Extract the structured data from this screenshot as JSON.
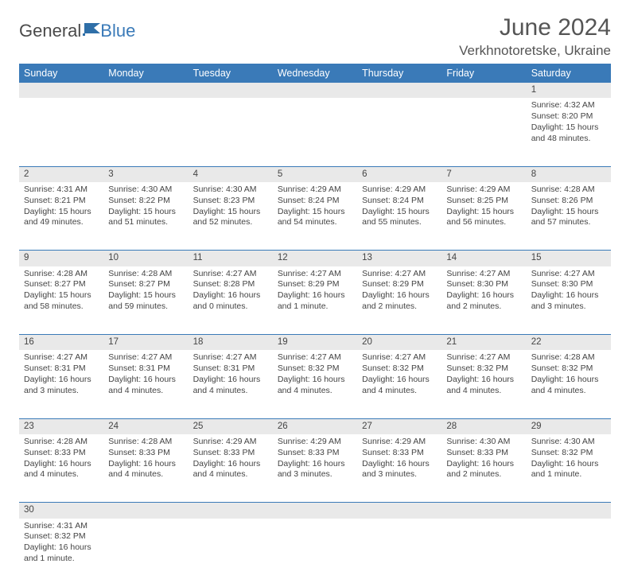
{
  "brand": {
    "general": "General",
    "blue": "Blue"
  },
  "title": "June 2024",
  "location": "Verkhnotoretske, Ukraine",
  "colors": {
    "header_bg": "#3a7ab8",
    "header_text": "#ffffff",
    "daynum_bg": "#e9e9e9",
    "border": "#3a7ab8",
    "body_text": "#444444",
    "title_text": "#555555"
  },
  "layout": {
    "columns": 7,
    "column_width_pct": 14.2857
  },
  "weekdays": [
    "Sunday",
    "Monday",
    "Tuesday",
    "Wednesday",
    "Thursday",
    "Friday",
    "Saturday"
  ],
  "weeks": [
    [
      null,
      null,
      null,
      null,
      null,
      null,
      {
        "n": "1",
        "sr": "Sunrise: 4:32 AM",
        "ss": "Sunset: 8:20 PM",
        "d1": "Daylight: 15 hours",
        "d2": "and 48 minutes."
      }
    ],
    [
      {
        "n": "2",
        "sr": "Sunrise: 4:31 AM",
        "ss": "Sunset: 8:21 PM",
        "d1": "Daylight: 15 hours",
        "d2": "and 49 minutes."
      },
      {
        "n": "3",
        "sr": "Sunrise: 4:30 AM",
        "ss": "Sunset: 8:22 PM",
        "d1": "Daylight: 15 hours",
        "d2": "and 51 minutes."
      },
      {
        "n": "4",
        "sr": "Sunrise: 4:30 AM",
        "ss": "Sunset: 8:23 PM",
        "d1": "Daylight: 15 hours",
        "d2": "and 52 minutes."
      },
      {
        "n": "5",
        "sr": "Sunrise: 4:29 AM",
        "ss": "Sunset: 8:24 PM",
        "d1": "Daylight: 15 hours",
        "d2": "and 54 minutes."
      },
      {
        "n": "6",
        "sr": "Sunrise: 4:29 AM",
        "ss": "Sunset: 8:24 PM",
        "d1": "Daylight: 15 hours",
        "d2": "and 55 minutes."
      },
      {
        "n": "7",
        "sr": "Sunrise: 4:29 AM",
        "ss": "Sunset: 8:25 PM",
        "d1": "Daylight: 15 hours",
        "d2": "and 56 minutes."
      },
      {
        "n": "8",
        "sr": "Sunrise: 4:28 AM",
        "ss": "Sunset: 8:26 PM",
        "d1": "Daylight: 15 hours",
        "d2": "and 57 minutes."
      }
    ],
    [
      {
        "n": "9",
        "sr": "Sunrise: 4:28 AM",
        "ss": "Sunset: 8:27 PM",
        "d1": "Daylight: 15 hours",
        "d2": "and 58 minutes."
      },
      {
        "n": "10",
        "sr": "Sunrise: 4:28 AM",
        "ss": "Sunset: 8:27 PM",
        "d1": "Daylight: 15 hours",
        "d2": "and 59 minutes."
      },
      {
        "n": "11",
        "sr": "Sunrise: 4:27 AM",
        "ss": "Sunset: 8:28 PM",
        "d1": "Daylight: 16 hours",
        "d2": "and 0 minutes."
      },
      {
        "n": "12",
        "sr": "Sunrise: 4:27 AM",
        "ss": "Sunset: 8:29 PM",
        "d1": "Daylight: 16 hours",
        "d2": "and 1 minute."
      },
      {
        "n": "13",
        "sr": "Sunrise: 4:27 AM",
        "ss": "Sunset: 8:29 PM",
        "d1": "Daylight: 16 hours",
        "d2": "and 2 minutes."
      },
      {
        "n": "14",
        "sr": "Sunrise: 4:27 AM",
        "ss": "Sunset: 8:30 PM",
        "d1": "Daylight: 16 hours",
        "d2": "and 2 minutes."
      },
      {
        "n": "15",
        "sr": "Sunrise: 4:27 AM",
        "ss": "Sunset: 8:30 PM",
        "d1": "Daylight: 16 hours",
        "d2": "and 3 minutes."
      }
    ],
    [
      {
        "n": "16",
        "sr": "Sunrise: 4:27 AM",
        "ss": "Sunset: 8:31 PM",
        "d1": "Daylight: 16 hours",
        "d2": "and 3 minutes."
      },
      {
        "n": "17",
        "sr": "Sunrise: 4:27 AM",
        "ss": "Sunset: 8:31 PM",
        "d1": "Daylight: 16 hours",
        "d2": "and 4 minutes."
      },
      {
        "n": "18",
        "sr": "Sunrise: 4:27 AM",
        "ss": "Sunset: 8:31 PM",
        "d1": "Daylight: 16 hours",
        "d2": "and 4 minutes."
      },
      {
        "n": "19",
        "sr": "Sunrise: 4:27 AM",
        "ss": "Sunset: 8:32 PM",
        "d1": "Daylight: 16 hours",
        "d2": "and 4 minutes."
      },
      {
        "n": "20",
        "sr": "Sunrise: 4:27 AM",
        "ss": "Sunset: 8:32 PM",
        "d1": "Daylight: 16 hours",
        "d2": "and 4 minutes."
      },
      {
        "n": "21",
        "sr": "Sunrise: 4:27 AM",
        "ss": "Sunset: 8:32 PM",
        "d1": "Daylight: 16 hours",
        "d2": "and 4 minutes."
      },
      {
        "n": "22",
        "sr": "Sunrise: 4:28 AM",
        "ss": "Sunset: 8:32 PM",
        "d1": "Daylight: 16 hours",
        "d2": "and 4 minutes."
      }
    ],
    [
      {
        "n": "23",
        "sr": "Sunrise: 4:28 AM",
        "ss": "Sunset: 8:33 PM",
        "d1": "Daylight: 16 hours",
        "d2": "and 4 minutes."
      },
      {
        "n": "24",
        "sr": "Sunrise: 4:28 AM",
        "ss": "Sunset: 8:33 PM",
        "d1": "Daylight: 16 hours",
        "d2": "and 4 minutes."
      },
      {
        "n": "25",
        "sr": "Sunrise: 4:29 AM",
        "ss": "Sunset: 8:33 PM",
        "d1": "Daylight: 16 hours",
        "d2": "and 4 minutes."
      },
      {
        "n": "26",
        "sr": "Sunrise: 4:29 AM",
        "ss": "Sunset: 8:33 PM",
        "d1": "Daylight: 16 hours",
        "d2": "and 3 minutes."
      },
      {
        "n": "27",
        "sr": "Sunrise: 4:29 AM",
        "ss": "Sunset: 8:33 PM",
        "d1": "Daylight: 16 hours",
        "d2": "and 3 minutes."
      },
      {
        "n": "28",
        "sr": "Sunrise: 4:30 AM",
        "ss": "Sunset: 8:33 PM",
        "d1": "Daylight: 16 hours",
        "d2": "and 2 minutes."
      },
      {
        "n": "29",
        "sr": "Sunrise: 4:30 AM",
        "ss": "Sunset: 8:32 PM",
        "d1": "Daylight: 16 hours",
        "d2": "and 1 minute."
      }
    ],
    [
      {
        "n": "30",
        "sr": "Sunrise: 4:31 AM",
        "ss": "Sunset: 8:32 PM",
        "d1": "Daylight: 16 hours",
        "d2": "and 1 minute."
      },
      null,
      null,
      null,
      null,
      null,
      null
    ]
  ]
}
